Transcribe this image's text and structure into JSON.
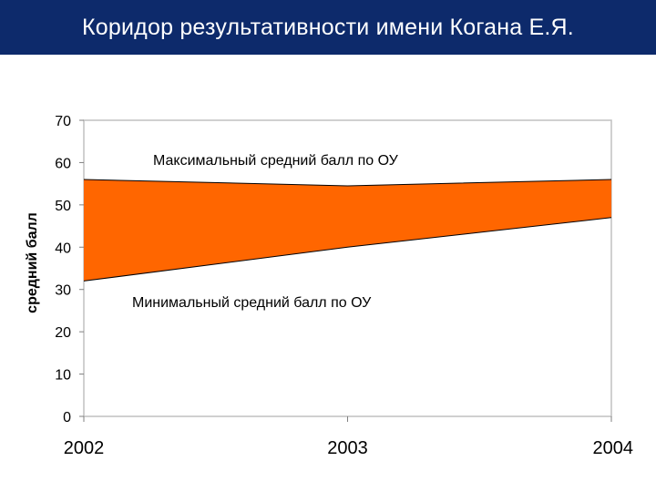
{
  "header": {
    "title": "Коридор результативности имени Когана Е.Я."
  },
  "colors": {
    "header_bg": "#0d2a6b",
    "band_fill": "#ff6600",
    "band_stroke": "#000000",
    "plot_bg": "#ffffff",
    "grid": "#c0c0c0"
  },
  "chart_data": {
    "type": "area",
    "x": [
      "2002",
      "2003",
      "2004"
    ],
    "series": [
      {
        "name": "Максимальный средний балл по ОУ",
        "values": [
          56,
          54.5,
          56
        ]
      },
      {
        "name": "Минимальный средний балл по ОУ",
        "values": [
          32,
          40,
          47
        ]
      }
    ],
    "ylabel": "средний балл",
    "xlabel": "",
    "ylim": [
      0,
      70
    ],
    "yticks": [
      0,
      10,
      20,
      30,
      40,
      50,
      60,
      70
    ],
    "grid": false,
    "annotations": [
      "Максимальный средний балл по ОУ",
      "Минимальный средний балл по ОУ"
    ]
  }
}
